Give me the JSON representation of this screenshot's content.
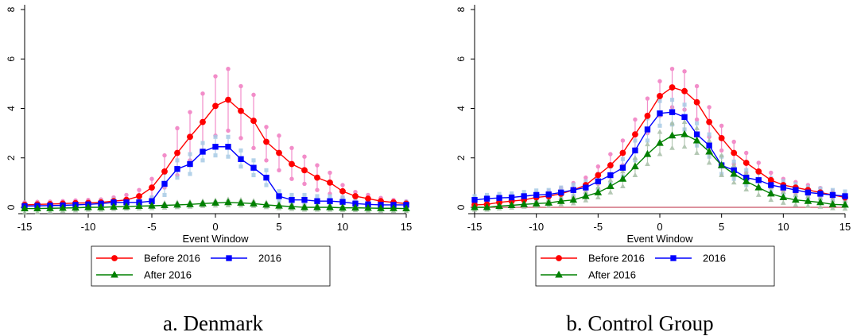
{
  "chart_data": [
    {
      "type": "line",
      "caption": "a. Denmark",
      "xlabel": "Event Window",
      "ylabel": "",
      "xlim": [
        -15,
        15
      ],
      "ylim": [
        0,
        8
      ],
      "xticks": [
        -15,
        -10,
        -5,
        0,
        5,
        10,
        15
      ],
      "yticks": [
        0,
        2,
        4,
        6,
        8
      ],
      "grid": false,
      "legend_position": "bottom",
      "x": [
        -15,
        -14,
        -13,
        -12,
        -11,
        -10,
        -9,
        -8,
        -7,
        -6,
        -5,
        -4,
        -3,
        -2,
        -1,
        0,
        1,
        2,
        3,
        4,
        5,
        6,
        7,
        8,
        9,
        10,
        11,
        12,
        13,
        14,
        15
      ],
      "series": [
        {
          "name": "Before 2016",
          "color": "#ff0000",
          "marker": "circle",
          "ci_color": "#f07ac0",
          "values": [
            0.1,
            0.12,
            0.13,
            0.15,
            0.17,
            0.18,
            0.2,
            0.25,
            0.3,
            0.45,
            0.8,
            1.45,
            2.2,
            2.85,
            3.45,
            4.1,
            4.35,
            3.9,
            3.5,
            2.65,
            2.2,
            1.75,
            1.5,
            1.2,
            1.0,
            0.65,
            0.45,
            0.35,
            0.25,
            0.2,
            0.15
          ],
          "lower": [
            0.0,
            0.02,
            0.03,
            0.05,
            0.06,
            0.07,
            0.08,
            0.1,
            0.12,
            0.2,
            0.4,
            0.8,
            1.3,
            1.9,
            2.3,
            2.9,
            3.1,
            2.8,
            2.4,
            1.9,
            1.5,
            1.15,
            0.95,
            0.7,
            0.55,
            0.4,
            0.28,
            0.2,
            0.12,
            0.1,
            0.06
          ],
          "upper": [
            0.2,
            0.22,
            0.23,
            0.25,
            0.28,
            0.3,
            0.32,
            0.4,
            0.5,
            0.7,
            1.15,
            2.1,
            3.2,
            3.85,
            4.6,
            5.3,
            5.6,
            4.9,
            4.55,
            3.25,
            2.9,
            2.4,
            2.05,
            1.7,
            1.4,
            0.9,
            0.62,
            0.5,
            0.38,
            0.3,
            0.24
          ]
        },
        {
          "name": "2016",
          "color": "#0000ff",
          "marker": "square",
          "ci_color": "#a8cbe6",
          "values": [
            0.05,
            0.06,
            0.07,
            0.08,
            0.1,
            0.12,
            0.15,
            0.2,
            0.2,
            0.2,
            0.25,
            0.95,
            1.55,
            1.75,
            2.25,
            2.45,
            2.45,
            1.95,
            1.6,
            1.2,
            0.45,
            0.3,
            0.3,
            0.25,
            0.25,
            0.22,
            0.15,
            0.12,
            0.1,
            0.1,
            0.1
          ],
          "lower": [
            0.0,
            0.0,
            0.0,
            0.0,
            0.02,
            0.03,
            0.05,
            0.08,
            0.08,
            0.08,
            0.1,
            0.5,
            1.2,
            1.35,
            1.9,
            2.1,
            2.05,
            1.65,
            1.3,
            0.9,
            0.25,
            0.1,
            0.1,
            0.05,
            0.05,
            0.05,
            0.02,
            0.0,
            0.0,
            0.0,
            0.0
          ],
          "upper": [
            0.15,
            0.16,
            0.17,
            0.18,
            0.2,
            0.22,
            0.25,
            0.32,
            0.32,
            0.32,
            0.4,
            1.4,
            1.9,
            2.15,
            2.6,
            2.85,
            2.85,
            2.3,
            1.9,
            1.5,
            0.65,
            0.5,
            0.5,
            0.45,
            0.45,
            0.4,
            0.3,
            0.25,
            0.22,
            0.22,
            0.22
          ]
        },
        {
          "name": "After 2016",
          "color": "#008000",
          "marker": "triangle",
          "ci_color": "#a8bfa8",
          "values": [
            -0.05,
            -0.05,
            -0.04,
            -0.03,
            -0.02,
            0.0,
            0.0,
            0.02,
            0.03,
            0.05,
            0.06,
            0.08,
            0.1,
            0.12,
            0.15,
            0.18,
            0.2,
            0.18,
            0.15,
            0.1,
            0.06,
            0.03,
            0.0,
            0.0,
            0.0,
            -0.02,
            -0.02,
            -0.03,
            -0.04,
            -0.04,
            -0.05
          ],
          "lower": [
            -0.22,
            -0.2,
            -0.18,
            -0.15,
            -0.13,
            -0.1,
            -0.1,
            -0.08,
            -0.06,
            -0.05,
            -0.04,
            -0.02,
            0.0,
            0.02,
            0.05,
            0.07,
            0.08,
            0.07,
            0.05,
            0.0,
            -0.04,
            -0.07,
            -0.1,
            -0.1,
            -0.1,
            -0.12,
            -0.12,
            -0.14,
            -0.15,
            -0.15,
            -0.16
          ],
          "upper": [
            0.1,
            0.1,
            0.1,
            0.1,
            0.1,
            0.1,
            0.1,
            0.12,
            0.13,
            0.15,
            0.16,
            0.18,
            0.2,
            0.22,
            0.25,
            0.28,
            0.32,
            0.3,
            0.26,
            0.2,
            0.16,
            0.13,
            0.1,
            0.1,
            0.1,
            0.08,
            0.08,
            0.07,
            0.06,
            0.06,
            0.05
          ]
        }
      ]
    },
    {
      "type": "line",
      "caption": "b. Control Group",
      "xlabel": "Event Window",
      "ylabel": "",
      "xlim": [
        -15,
        15
      ],
      "ylim": [
        0,
        8
      ],
      "xticks": [
        -15,
        -10,
        -5,
        0,
        5,
        10,
        15
      ],
      "yticks": [
        0,
        2,
        4,
        6,
        8
      ],
      "grid": false,
      "legend_position": "bottom",
      "reference_line": {
        "y": 0,
        "color": "#c65063"
      },
      "x": [
        -15,
        -14,
        -13,
        -12,
        -11,
        -10,
        -9,
        -8,
        -7,
        -6,
        -5,
        -4,
        -3,
        -2,
        -1,
        0,
        1,
        2,
        3,
        4,
        5,
        6,
        7,
        8,
        9,
        10,
        11,
        12,
        13,
        14,
        15
      ],
      "series": [
        {
          "name": "Before 2016",
          "color": "#ff0000",
          "marker": "circle",
          "ci_color": "#f07ac0",
          "values": [
            0.1,
            0.12,
            0.2,
            0.25,
            0.3,
            0.4,
            0.45,
            0.55,
            0.7,
            0.9,
            1.3,
            1.7,
            2.2,
            2.95,
            3.7,
            4.5,
            4.85,
            4.7,
            4.25,
            3.45,
            2.8,
            2.2,
            1.8,
            1.45,
            1.1,
            0.9,
            0.8,
            0.7,
            0.6,
            0.5,
            0.4
          ],
          "lower": [
            0.0,
            0.02,
            0.08,
            0.12,
            0.15,
            0.22,
            0.25,
            0.32,
            0.42,
            0.6,
            0.95,
            1.25,
            1.7,
            2.35,
            3.0,
            3.7,
            4.05,
            3.95,
            3.55,
            2.85,
            2.3,
            1.75,
            1.4,
            1.1,
            0.8,
            0.65,
            0.58,
            0.5,
            0.42,
            0.34,
            0.26
          ],
          "upper": [
            0.22,
            0.24,
            0.32,
            0.38,
            0.45,
            0.58,
            0.65,
            0.78,
            0.98,
            1.2,
            1.65,
            2.15,
            2.7,
            3.55,
            4.4,
            5.1,
            5.6,
            5.5,
            4.9,
            4.05,
            3.3,
            2.65,
            2.2,
            1.8,
            1.4,
            1.15,
            1.02,
            0.9,
            0.78,
            0.66,
            0.54
          ]
        },
        {
          "name": "2016",
          "color": "#0000ff",
          "marker": "square",
          "ci_color": "#a8cbe6",
          "values": [
            0.3,
            0.35,
            0.38,
            0.4,
            0.45,
            0.5,
            0.52,
            0.6,
            0.7,
            0.8,
            1.05,
            1.3,
            1.6,
            2.3,
            3.15,
            3.8,
            3.85,
            3.65,
            2.95,
            2.5,
            1.7,
            1.5,
            1.2,
            1.1,
            0.9,
            0.8,
            0.7,
            0.6,
            0.55,
            0.5,
            0.45
          ],
          "lower": [
            0.15,
            0.2,
            0.22,
            0.24,
            0.28,
            0.32,
            0.34,
            0.4,
            0.48,
            0.55,
            0.75,
            0.95,
            1.25,
            1.9,
            2.7,
            3.3,
            3.35,
            3.15,
            2.5,
            2.05,
            1.35,
            1.15,
            0.9,
            0.8,
            0.62,
            0.54,
            0.46,
            0.38,
            0.34,
            0.3,
            0.26
          ],
          "upper": [
            0.45,
            0.5,
            0.54,
            0.56,
            0.62,
            0.68,
            0.7,
            0.8,
            0.92,
            1.05,
            1.35,
            1.65,
            1.95,
            2.7,
            3.6,
            4.3,
            4.35,
            4.15,
            3.4,
            2.95,
            2.05,
            1.85,
            1.5,
            1.4,
            1.18,
            1.06,
            0.94,
            0.82,
            0.76,
            0.7,
            0.64
          ]
        },
        {
          "name": "After 2016",
          "color": "#008000",
          "marker": "triangle",
          "ci_color": "#a8bfa8",
          "values": [
            0.0,
            0.0,
            0.05,
            0.08,
            0.12,
            0.15,
            0.18,
            0.25,
            0.3,
            0.45,
            0.6,
            0.85,
            1.15,
            1.65,
            2.15,
            2.6,
            2.9,
            2.95,
            2.7,
            2.25,
            1.7,
            1.35,
            1.05,
            0.8,
            0.55,
            0.4,
            0.3,
            0.25,
            0.2,
            0.12,
            0.1
          ],
          "lower": [
            -0.1,
            -0.1,
            -0.05,
            -0.02,
            0.02,
            0.04,
            0.06,
            0.12,
            0.16,
            0.28,
            0.4,
            0.6,
            0.85,
            1.3,
            1.75,
            2.15,
            2.4,
            2.45,
            2.2,
            1.8,
            1.3,
            1.0,
            0.72,
            0.5,
            0.3,
            0.18,
            0.1,
            0.06,
            0.02,
            -0.04,
            -0.06
          ],
          "upper": [
            0.1,
            0.1,
            0.15,
            0.18,
            0.22,
            0.26,
            0.3,
            0.38,
            0.44,
            0.62,
            0.8,
            1.1,
            1.45,
            2.0,
            2.55,
            3.05,
            3.4,
            3.45,
            3.2,
            2.7,
            2.1,
            1.7,
            1.38,
            1.1,
            0.8,
            0.62,
            0.5,
            0.44,
            0.38,
            0.28,
            0.26
          ]
        }
      ]
    }
  ]
}
